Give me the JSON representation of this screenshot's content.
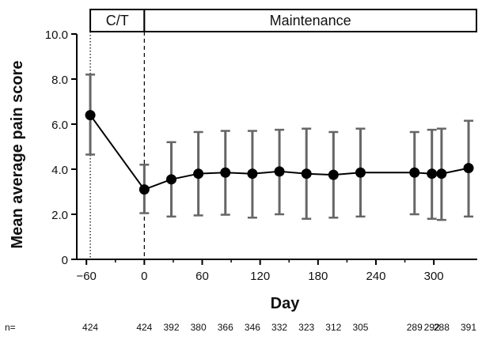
{
  "chart_data": {
    "type": "line",
    "xlabel": "Day",
    "ylabel": "Mean average pain score",
    "xlim": [
      -70,
      345
    ],
    "ylim": [
      0,
      10
    ],
    "xticks": [
      -60,
      0,
      60,
      120,
      180,
      240,
      300
    ],
    "xtick_labels": [
      "−60",
      "0",
      "60",
      "120",
      "180",
      "240",
      "300"
    ],
    "yticks": [
      0,
      2,
      4,
      6,
      8,
      10
    ],
    "ytick_labels": [
      "0",
      "2.0",
      "4.0",
      "6.0",
      "8.0",
      "10.0"
    ],
    "series": [
      {
        "x": [
          -56,
          0,
          28,
          56,
          84,
          112,
          140,
          168,
          196,
          224,
          280,
          298,
          308,
          336
        ],
        "y": [
          6.4,
          3.1,
          3.55,
          3.8,
          3.85,
          3.8,
          3.9,
          3.8,
          3.75,
          3.85,
          3.85,
          3.8,
          3.8,
          4.05
        ],
        "err_low": [
          4.65,
          2.05,
          1.9,
          1.95,
          1.98,
          1.85,
          2.0,
          1.8,
          1.85,
          1.9,
          2.0,
          1.8,
          1.75,
          1.9
        ],
        "err_high": [
          8.2,
          4.2,
          5.2,
          5.65,
          5.7,
          5.7,
          5.75,
          5.8,
          5.65,
          5.8,
          5.65,
          5.75,
          5.8,
          6.15
        ]
      }
    ],
    "phases": [
      {
        "label": "C/T",
        "x_start": -56,
        "x_end": 0,
        "line_style": "dotted"
      },
      {
        "label": "Maintenance",
        "x_start": 0,
        "x_end": 345,
        "line_style": "dashed"
      }
    ],
    "n_label": "n=",
    "n_values": [
      "424",
      "424",
      "392",
      "380",
      "366",
      "346",
      "332",
      "323",
      "312",
      "305",
      "289",
      "292",
      "288",
      "391"
    ],
    "grid": false,
    "legend": "none",
    "colors": {
      "line": "#000000",
      "marker": "#000000",
      "error_bar": "#666666",
      "axis": "#000000"
    }
  }
}
